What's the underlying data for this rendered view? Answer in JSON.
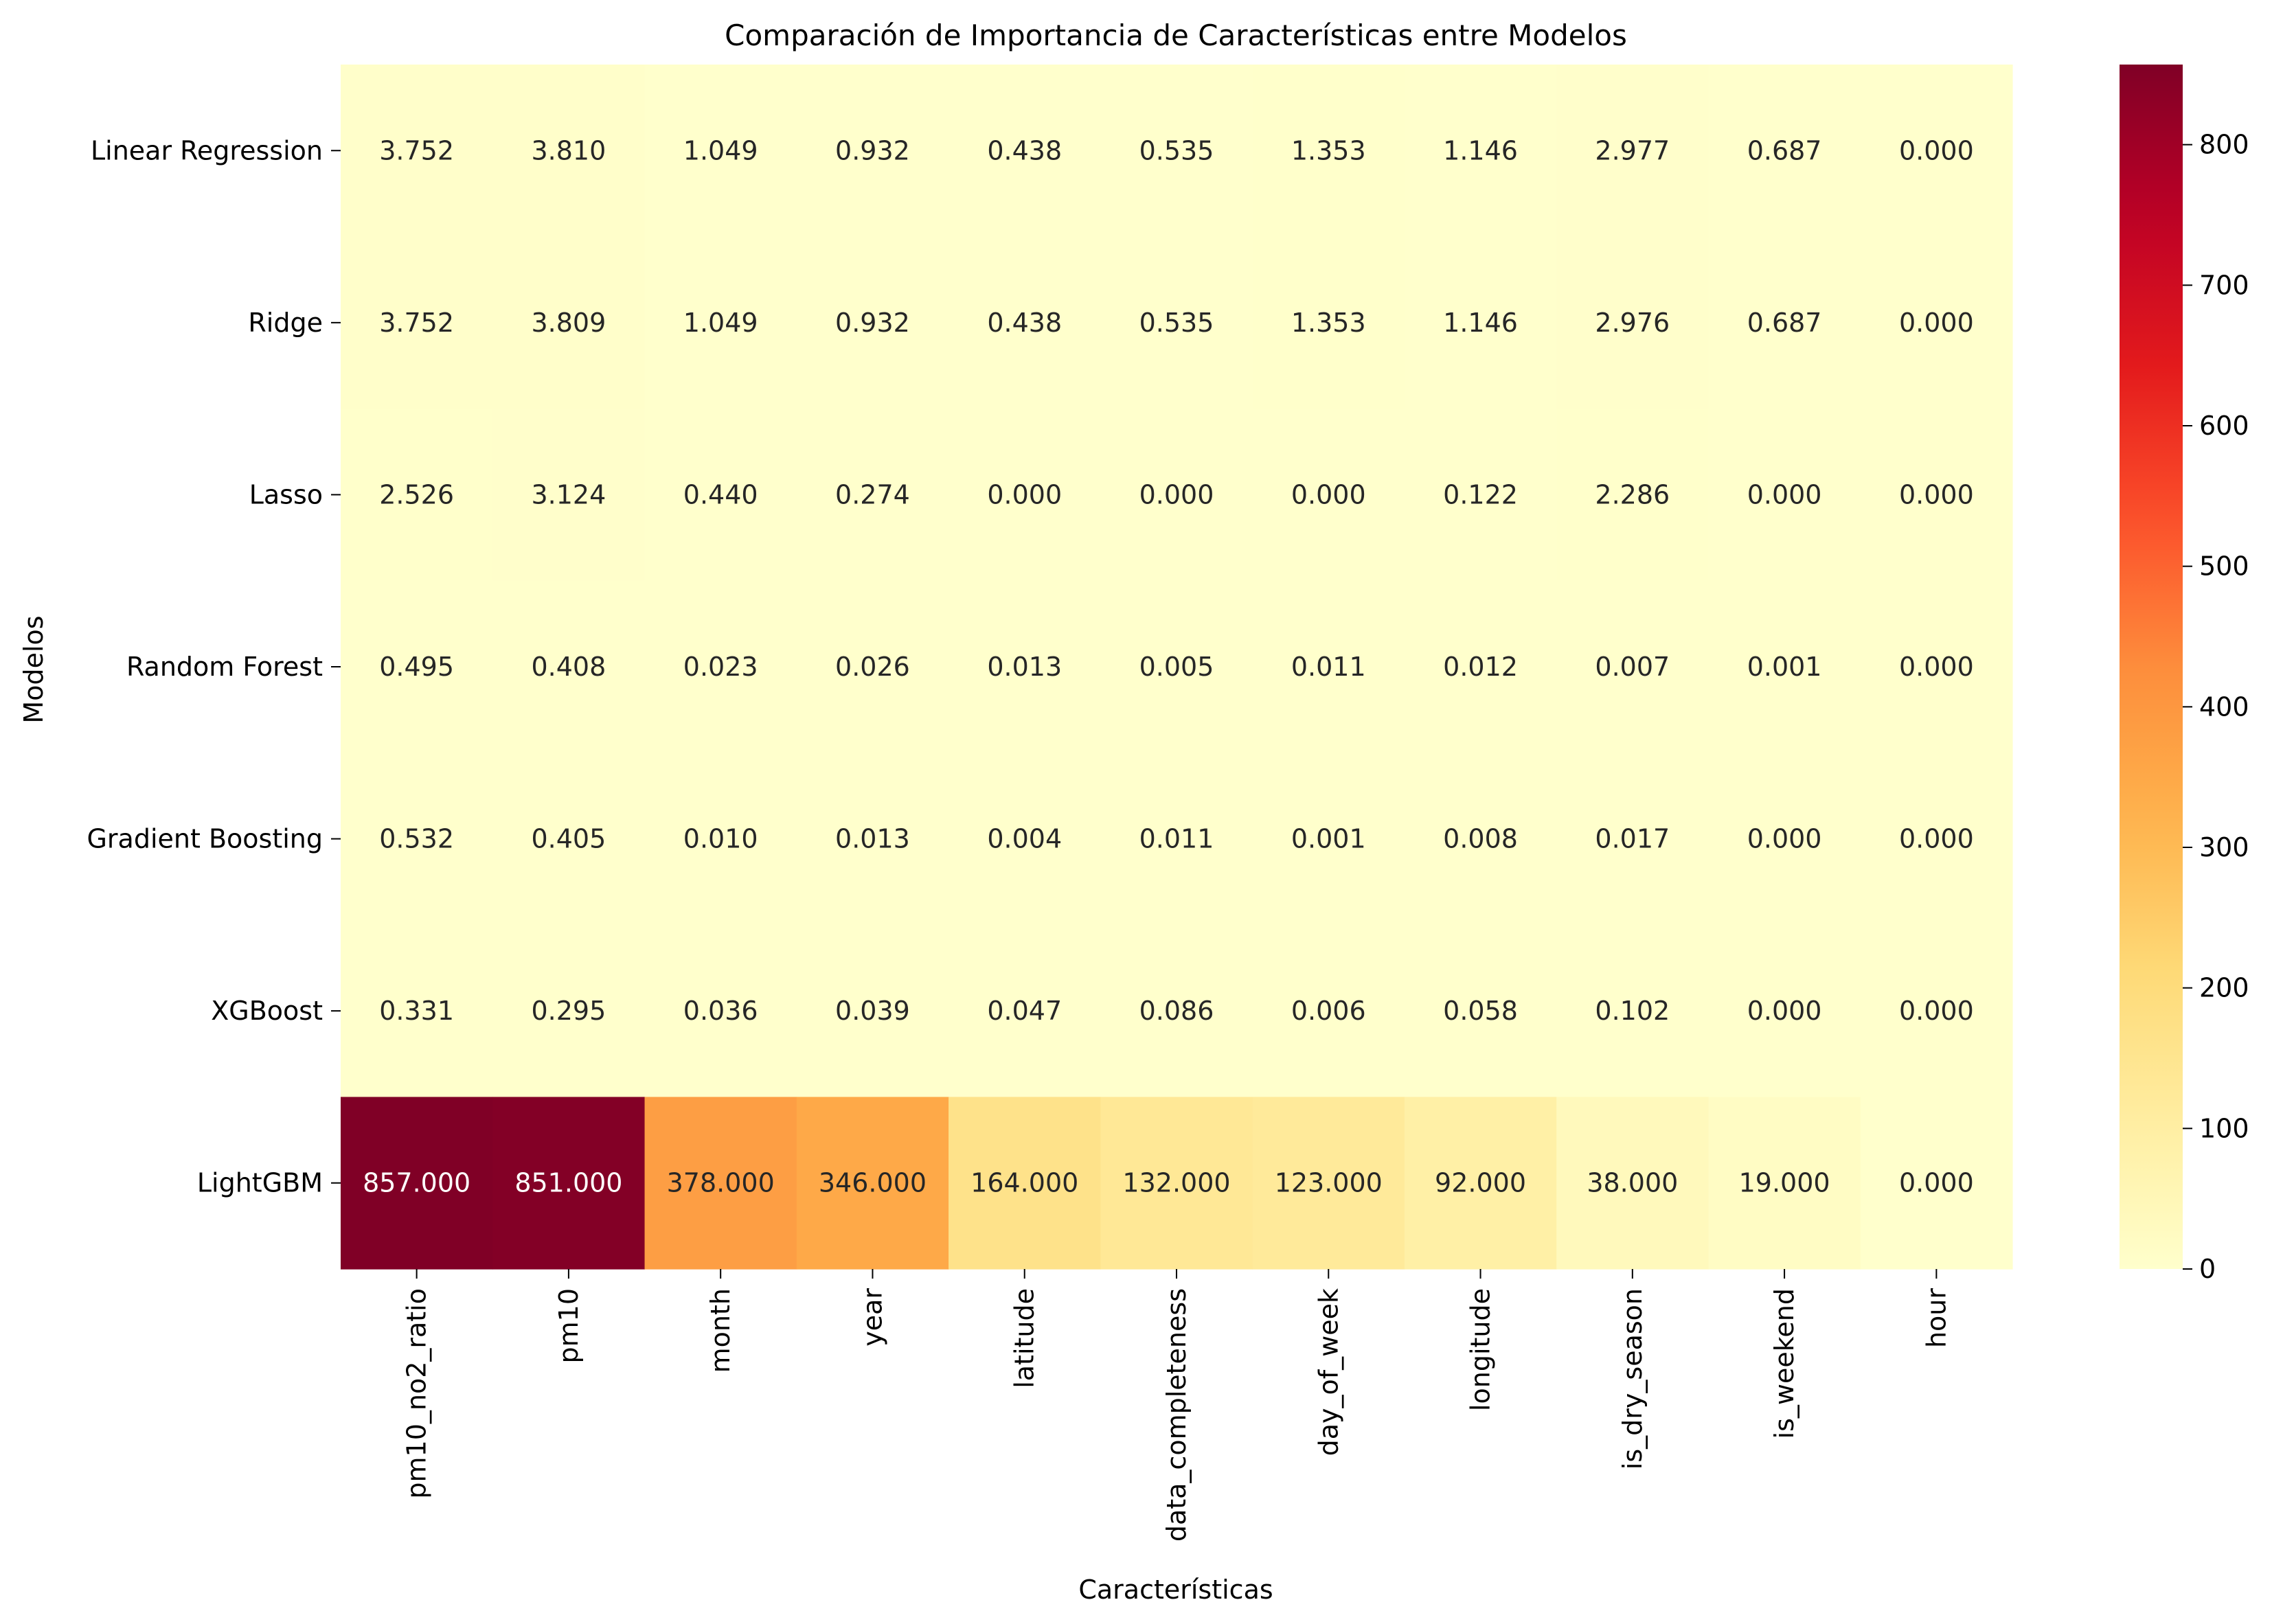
{
  "chart_data": {
    "type": "heatmap",
    "title": "Comparación de Importancia de Características entre Modelos",
    "xlabel": "Características",
    "ylabel": "Modelos",
    "columns": [
      "pm10_no2_ratio",
      "pm10",
      "month",
      "year",
      "latitude",
      "data_completeness",
      "day_of_week",
      "longitude",
      "is_dry_season",
      "is_weekend",
      "hour"
    ],
    "rows": [
      "Linear Regression",
      "Ridge",
      "Lasso",
      "Random Forest",
      "Gradient Boosting",
      "XGBoost",
      "LightGBM"
    ],
    "values": [
      [
        3.752,
        3.81,
        1.049,
        0.932,
        0.438,
        0.535,
        1.353,
        1.146,
        2.977,
        0.687,
        0.0
      ],
      [
        3.752,
        3.809,
        1.049,
        0.932,
        0.438,
        0.535,
        1.353,
        1.146,
        2.976,
        0.687,
        0.0
      ],
      [
        2.526,
        3.124,
        0.44,
        0.274,
        0.0,
        0.0,
        0.0,
        0.122,
        2.286,
        0.0,
        0.0
      ],
      [
        0.495,
        0.408,
        0.023,
        0.026,
        0.013,
        0.005,
        0.011,
        0.012,
        0.007,
        0.001,
        0.0
      ],
      [
        0.532,
        0.405,
        0.01,
        0.013,
        0.004,
        0.011,
        0.001,
        0.008,
        0.017,
        0.0,
        0.0
      ],
      [
        0.331,
        0.295,
        0.036,
        0.039,
        0.047,
        0.086,
        0.006,
        0.058,
        0.102,
        0.0,
        0.0
      ],
      [
        857.0,
        851.0,
        378.0,
        346.0,
        164.0,
        132.0,
        123.0,
        92.0,
        38.0,
        19.0,
        0.0
      ]
    ],
    "value_format": "3 decimals",
    "colormap": "YlOrRd",
    "colorbar": {
      "vmin": 0,
      "vmax": 857,
      "ticks": [
        0,
        100,
        200,
        300,
        400,
        500,
        600,
        700,
        800
      ]
    },
    "colors": {
      "low": "#ffffcc",
      "high": "#800026"
    }
  }
}
